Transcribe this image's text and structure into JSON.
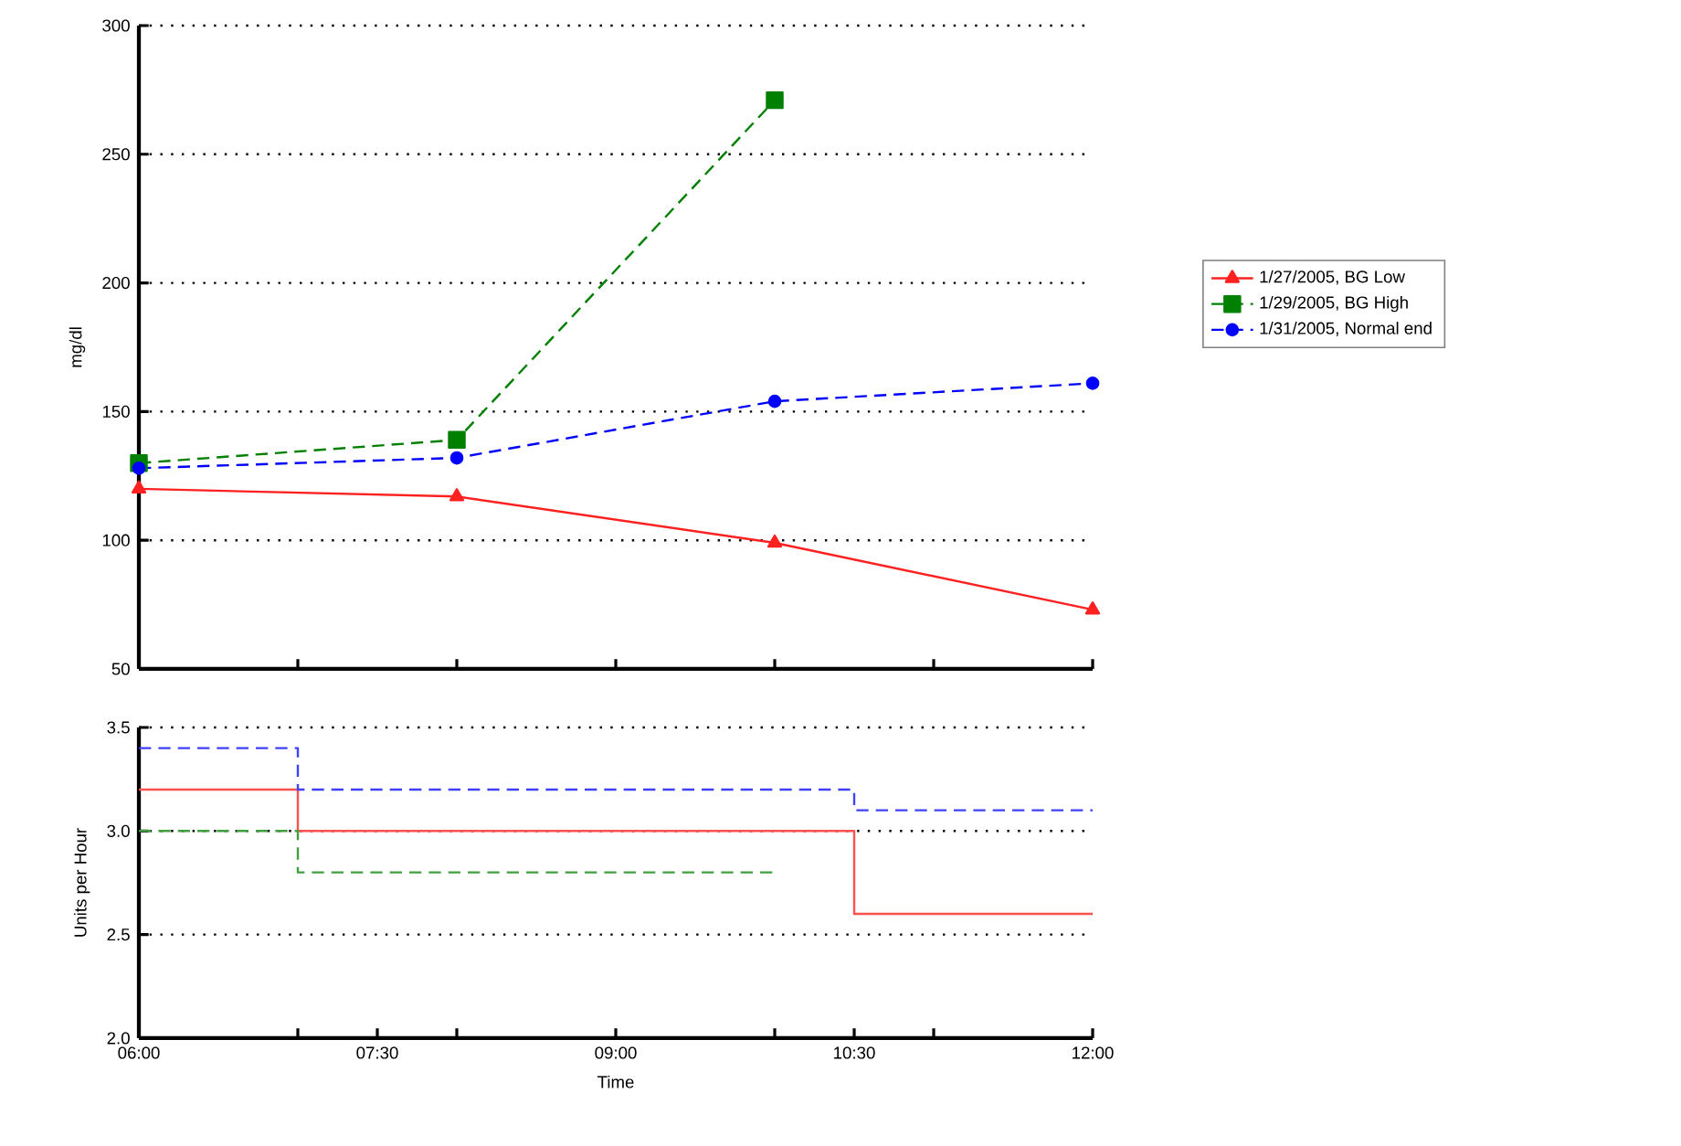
{
  "chart_data": [
    {
      "type": "line",
      "ylabel": "mg/dl",
      "x": [
        6,
        8,
        10,
        12
      ],
      "xlim": [
        6,
        12
      ],
      "xticks": [
        {
          "value": 6,
          "label": null
        },
        {
          "value": 7,
          "label": null
        },
        {
          "value": 8,
          "label": null
        },
        {
          "value": 9,
          "label": null
        },
        {
          "value": 10,
          "label": null
        },
        {
          "value": 11,
          "label": null
        },
        {
          "value": 12,
          "label": null
        }
      ],
      "ylim": [
        50,
        300
      ],
      "yticks": [
        50,
        100,
        150,
        200,
        250,
        300
      ],
      "tick_labels": "y",
      "grid": "y",
      "legend": "right",
      "series": [
        {
          "name": "1/27/2005, BG Low",
          "color": "#ff2020",
          "values": [
            120,
            117,
            99,
            73
          ],
          "marker": "triangle",
          "line_style": "solid"
        },
        {
          "name": "1/29/2005, BG High",
          "color": "#008000",
          "values": [
            130,
            139,
            271,
            null
          ],
          "marker": "square",
          "line_style": "dashed"
        },
        {
          "name": "1/31/2005, Normal end",
          "color": "#0000ff",
          "values": [
            128,
            132,
            154,
            161
          ],
          "marker": "circle",
          "line_style": "dashed"
        }
      ]
    },
    {
      "type": "step",
      "xlabel": "Time",
      "ylabel": "Units per Hour",
      "xlim": [
        6,
        12
      ],
      "xticks": [
        {
          "value": 6,
          "label": "06:00"
        },
        {
          "value": 7,
          "label": null
        },
        {
          "value": 7.5,
          "label": "07:30"
        },
        {
          "value": 8,
          "label": null
        },
        {
          "value": 9,
          "label": "09:00"
        },
        {
          "value": 10,
          "label": null
        },
        {
          "value": 10.5,
          "label": "10:30"
        },
        {
          "value": 11,
          "label": null
        },
        {
          "value": 12,
          "label": "12:00"
        }
      ],
      "ylim": [
        2,
        3.5
      ],
      "yticks": [
        {
          "value": 2,
          "label": "2.0"
        },
        {
          "value": 2.5,
          "label": "2.5"
        },
        {
          "value": 3,
          "label": "3.0"
        },
        {
          "value": 3.5,
          "label": "3.5"
        }
      ],
      "grid": "y",
      "series": [
        {
          "color": "#ff5050",
          "x": [
            6,
            7,
            10.5,
            12
          ],
          "values": [
            3.2,
            3.0,
            2.6,
            2.6
          ],
          "line_style": "solid"
        },
        {
          "color": "#40a040",
          "x": [
            6,
            7,
            10
          ],
          "values": [
            3.0,
            2.8,
            2.8
          ],
          "line_style": "dashed"
        },
        {
          "color": "#4040ff",
          "x": [
            6,
            7,
            10.5,
            12
          ],
          "values": [
            3.4,
            3.2,
            3.1,
            3.1
          ],
          "line_style": "dashed"
        }
      ]
    }
  ]
}
